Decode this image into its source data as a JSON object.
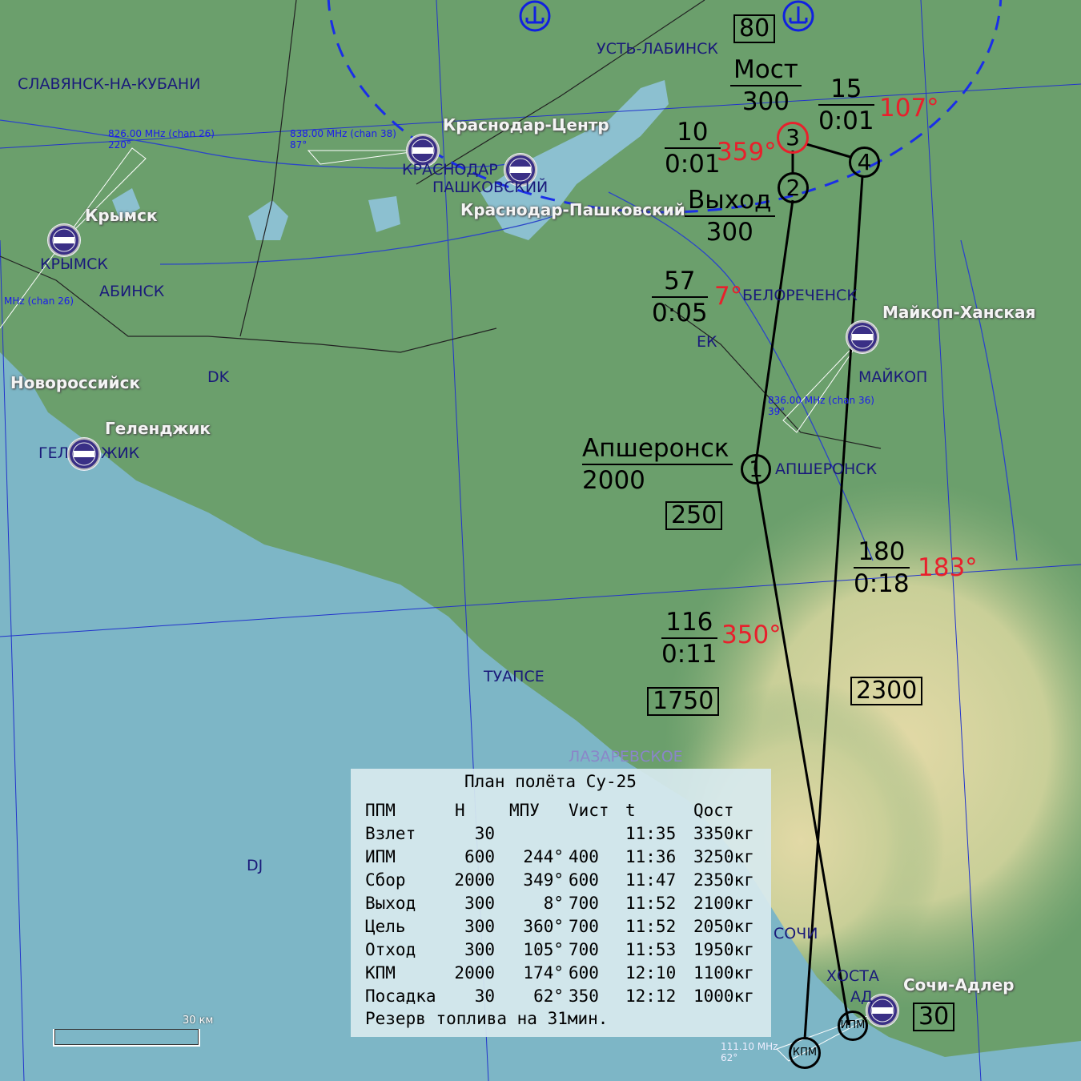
{
  "map": {
    "colors": {
      "land": "#6b9f6c",
      "sea": "#7db6c6",
      "mountain": "#d9d49a",
      "route": "#000000",
      "heading": "#e8202c",
      "city": "#1a1a7a",
      "airbase": "#3a2f86"
    },
    "cities": [
      "СЛАВЯНСК-НА-КУБАНИ",
      "УСТЬ-ЛАБИНСК",
      "КРАСНОДАР",
      "ПАШКОВСКИЙ",
      "КРЫМСК",
      "АБИНСК",
      "БЕЛОРЕЧЕНСК",
      "ЕК",
      "МАЙКОП",
      "АПШЕРОНСК",
      "DK",
      "ТУАПСЕ",
      "ЛАЗАРЕВСКОЕ",
      "DJ",
      "СОЧИ",
      "ХОСТА",
      "АД",
      "ГЕЛ",
      "ЖИК"
    ],
    "airfields": [
      "Краснодар-Центр",
      "Краснодар-Пашковский",
      "Крымск",
      "Новороссийск",
      "Геленджик",
      "Майкоп-Ханская",
      "Сочи-Адлер"
    ],
    "beacons": [
      {
        "freq": "826.00 MHz (chan 26)",
        "bearing": "220°"
      },
      {
        "freq": "838.00 MHz (chan 38)",
        "bearing": "87°"
      },
      {
        "freq": "MHz (chan 26)"
      },
      {
        "freq": "836.00 MHz (chan 36)",
        "bearing": "39°"
      },
      {
        "freq": "111.10 MHz",
        "bearing": "62°"
      }
    ],
    "waypoints": [
      {
        "id": "1"
      },
      {
        "id": "2"
      },
      {
        "id": "3",
        "highlight": true
      },
      {
        "id": "4"
      },
      {
        "id": "ИПМ"
      },
      {
        "id": "КПМ"
      }
    ],
    "legs": [
      {
        "name": "Апшеронск",
        "alt": "2000"
      },
      {
        "name": "Выход",
        "alt": "300"
      },
      {
        "name": "Мост",
        "alt": "300"
      },
      {
        "dist": "116",
        "time": "0:11",
        "heading": "350°"
      },
      {
        "dist": "57",
        "time": "0:05",
        "heading": "7°"
      },
      {
        "dist": "10",
        "time": "0:01",
        "heading": "359°"
      },
      {
        "dist": "15",
        "time": "0:01",
        "heading": "107°"
      },
      {
        "dist": "180",
        "time": "0:18",
        "heading": "183°"
      }
    ],
    "boxes": [
      "80",
      "250",
      "1750",
      "2300",
      "30"
    ],
    "scale": "30 км"
  },
  "plan": {
    "title": "План полёта Су-25",
    "headers": [
      "ППМ",
      "Н",
      "МПУ",
      "Vист",
      "t",
      "Qост"
    ],
    "rows": [
      [
        "Взлет",
        "30",
        "",
        "",
        "11:35",
        "3350кг"
      ],
      [
        "ИПМ",
        "600",
        "244°",
        "400",
        "11:36",
        "3250кг"
      ],
      [
        "Сбор",
        "2000",
        "349°",
        "600",
        "11:47",
        "2350кг"
      ],
      [
        "Выход",
        "300",
        "8°",
        "700",
        "11:52",
        "2100кг"
      ],
      [
        "Цель",
        "300",
        "360°",
        "700",
        "11:52",
        "2050кг"
      ],
      [
        "Отход",
        "300",
        "105°",
        "700",
        "11:53",
        "1950кг"
      ],
      [
        "КПМ",
        "2000",
        "174°",
        "600",
        "12:10",
        "1100кг"
      ],
      [
        "Посадка",
        "30",
        "62°",
        "350",
        "12:12",
        "1000кг"
      ]
    ],
    "footer": "Резерв топлива на 31мин."
  }
}
